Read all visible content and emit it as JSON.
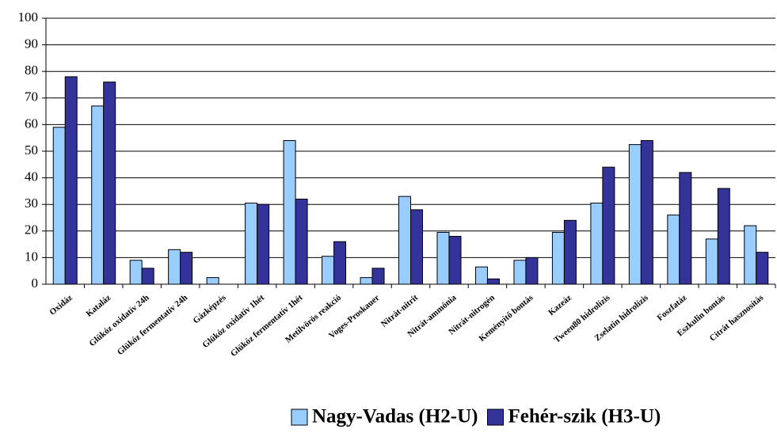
{
  "chart_data": {
    "type": "bar",
    "categories": [
      "Oxidáz",
      "Kataláz",
      "Glükóz oxidatív 24h",
      "Glükóz fermentatív 24h",
      "Gázképzés",
      "Glükóz oxidatív 1hét",
      "Glükóz fermentatív 1hét",
      "Metilvörös reakció",
      "Voges-Proskauer",
      "Nitrát-nitrit",
      "Nitrát-ammónia",
      "Nitrát-nitrogén",
      "Keményítő bontás",
      "Kazeáz",
      "Tween80 hidrolízis",
      "Zselatin hidrolízis",
      "Foszfatáz",
      "Eszkulin bontás",
      "Citrát hasznosítás"
    ],
    "series": [
      {
        "name": "Nagy-Vadas (H2-U)",
        "color": "#99ccff",
        "values": [
          59,
          67,
          9,
          13,
          2.5,
          30.5,
          54,
          10.5,
          2.5,
          33,
          19.5,
          6.5,
          9,
          19.5,
          30.5,
          52.5,
          26,
          17,
          22
        ]
      },
      {
        "name": "Fehér-szik (H3-U)",
        "color": "#333399",
        "values": [
          78,
          76,
          6,
          12,
          0,
          30,
          32,
          16,
          6,
          28,
          18,
          2,
          10,
          24,
          44,
          54,
          42,
          36,
          12
        ]
      }
    ],
    "ylim": [
      0,
      100
    ],
    "yticks": [
      0,
      10,
      20,
      30,
      40,
      50,
      60,
      70,
      80,
      90,
      100
    ],
    "grid": true,
    "legend": "bottom"
  }
}
